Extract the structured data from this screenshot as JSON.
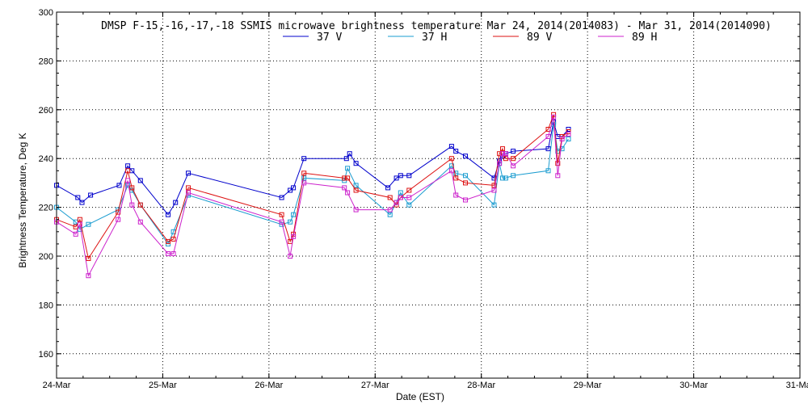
{
  "chart_data": {
    "type": "line",
    "title": "DMSP F-15,-16,-17,-18 SSMIS microwave brightness temperature Mar 24, 2014(2014083) - Mar 31, 2014(2014090)",
    "xlabel": "Date (EST)",
    "ylabel": "Brightness Temperature, Deg K",
    "xlim": [
      0,
      7
    ],
    "ylim": [
      150,
      300
    ],
    "x_ticks": [
      {
        "value": 0,
        "label": "24-Mar"
      },
      {
        "value": 1,
        "label": "25-Mar"
      },
      {
        "value": 2,
        "label": "26-Mar"
      },
      {
        "value": 3,
        "label": "27-Mar"
      },
      {
        "value": 4,
        "label": "28-Mar"
      },
      {
        "value": 5,
        "label": "29-Mar"
      },
      {
        "value": 6,
        "label": "30-Mar"
      },
      {
        "value": 7,
        "label": "31-Mar"
      }
    ],
    "y_ticks": [
      160,
      180,
      200,
      220,
      240,
      260,
      280,
      300
    ],
    "grid": true,
    "legend_position": "top-center",
    "series": [
      {
        "name": "37 V",
        "color": "#0000cc",
        "x": [
          0.0,
          0.2,
          0.24,
          0.32,
          0.59,
          0.67,
          0.71,
          0.79,
          1.05,
          1.12,
          1.24,
          2.12,
          2.2,
          2.23,
          2.33,
          2.73,
          2.76,
          2.82,
          3.12,
          3.2,
          3.24,
          3.32,
          3.72,
          3.76,
          3.85,
          4.12,
          4.17,
          4.2,
          4.23,
          4.3,
          4.63,
          4.68,
          4.72,
          4.76,
          4.82
        ],
        "y": [
          229,
          224,
          222,
          225,
          229,
          237,
          235,
          231,
          217,
          222,
          234,
          224,
          227,
          228,
          240,
          240,
          242,
          238,
          228,
          232,
          233,
          233,
          245,
          243,
          241,
          232,
          239,
          241,
          242,
          243,
          244,
          255,
          249,
          249,
          252
        ]
      },
      {
        "name": "37 H",
        "color": "#1a9cd0",
        "x": [
          0.0,
          0.18,
          0.22,
          0.3,
          0.58,
          0.67,
          0.71,
          0.79,
          1.05,
          1.1,
          1.24,
          2.12,
          2.2,
          2.23,
          2.33,
          2.71,
          2.74,
          2.82,
          3.14,
          3.2,
          3.24,
          3.32,
          3.72,
          3.76,
          3.85,
          4.12,
          4.17,
          4.2,
          4.23,
          4.3,
          4.63,
          4.68,
          4.72,
          4.76,
          4.82
        ],
        "y": [
          220,
          214,
          211,
          213,
          219,
          229,
          227,
          221,
          205,
          210,
          225,
          213,
          214,
          217,
          232,
          231,
          236,
          229,
          217,
          222,
          226,
          221,
          237,
          234,
          233,
          221,
          238,
          232,
          232,
          233,
          235,
          254,
          243,
          244,
          248
        ]
      },
      {
        "name": "89 V",
        "color": "#dd1111",
        "x": [
          0.0,
          0.18,
          0.22,
          0.3,
          0.58,
          0.67,
          0.71,
          0.79,
          1.05,
          1.1,
          1.24,
          2.12,
          2.2,
          2.23,
          2.33,
          2.71,
          2.74,
          2.82,
          3.14,
          3.2,
          3.24,
          3.32,
          3.72,
          3.76,
          3.85,
          4.12,
          4.17,
          4.2,
          4.23,
          4.3,
          4.63,
          4.68,
          4.72,
          4.76,
          4.82
        ],
        "y": [
          215,
          212,
          215,
          199,
          218,
          235,
          228,
          221,
          206,
          207,
          228,
          217,
          206,
          209,
          234,
          232,
          232,
          227,
          224,
          221,
          224,
          227,
          240,
          232,
          230,
          229,
          242,
          244,
          240,
          240,
          252,
          258,
          238,
          249,
          251
        ]
      },
      {
        "name": "89 H",
        "color": "#cc22cc",
        "x": [
          0.0,
          0.18,
          0.22,
          0.3,
          0.58,
          0.67,
          0.71,
          0.79,
          1.05,
          1.1,
          1.24,
          2.12,
          2.2,
          2.23,
          2.33,
          2.71,
          2.74,
          2.82,
          3.14,
          3.2,
          3.24,
          3.32,
          3.72,
          3.76,
          3.85,
          4.12,
          4.17,
          4.2,
          4.23,
          4.3,
          4.63,
          4.68,
          4.72,
          4.76,
          4.82
        ],
        "y": [
          214,
          209,
          213,
          192,
          215,
          231,
          221,
          214,
          201,
          201,
          226,
          214,
          200,
          208,
          230,
          228,
          226,
          219,
          219,
          222,
          224,
          224,
          235,
          225,
          223,
          227,
          238,
          242,
          242,
          237,
          249,
          257,
          233,
          248,
          250
        ]
      }
    ]
  }
}
